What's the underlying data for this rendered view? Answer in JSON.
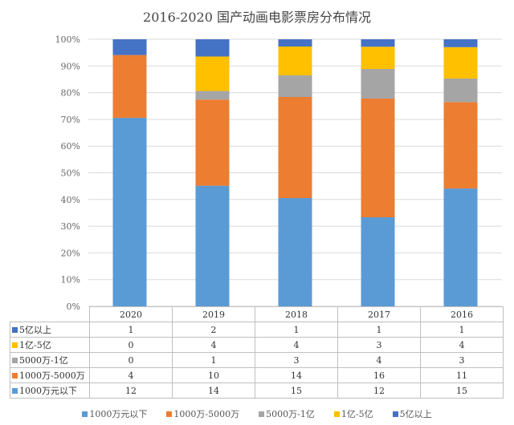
{
  "chart_data": {
    "type": "bar",
    "stacked": "percent",
    "title": "2016-2020 国产动画电影票房分布情况",
    "categories": [
      "2020",
      "2019",
      "2018",
      "2017",
      "2016"
    ],
    "yticks": [
      "0%",
      "10%",
      "20%",
      "30%",
      "40%",
      "50%",
      "60%",
      "70%",
      "80%",
      "90%",
      "100%"
    ],
    "ylim": [
      0,
      100
    ],
    "grid": true,
    "legend_position": "bottom",
    "series": [
      {
        "name": "1000万元以下",
        "color": "#5B9BD5",
        "values": [
          12,
          14,
          15,
          12,
          15
        ]
      },
      {
        "name": "1000万-5000万",
        "color": "#ED7D31",
        "values": [
          4,
          10,
          14,
          16,
          11
        ]
      },
      {
        "name": "5000万-1亿",
        "color": "#A5A5A5",
        "values": [
          0,
          1,
          3,
          4,
          3
        ]
      },
      {
        "name": "1亿-5亿",
        "color": "#FFC000",
        "values": [
          0,
          4,
          4,
          3,
          4
        ]
      },
      {
        "name": "5亿以上",
        "color": "#4472C4",
        "values": [
          1,
          2,
          1,
          1,
          1
        ]
      }
    ],
    "table_row_order": [
      4,
      3,
      2,
      1,
      0
    ]
  }
}
